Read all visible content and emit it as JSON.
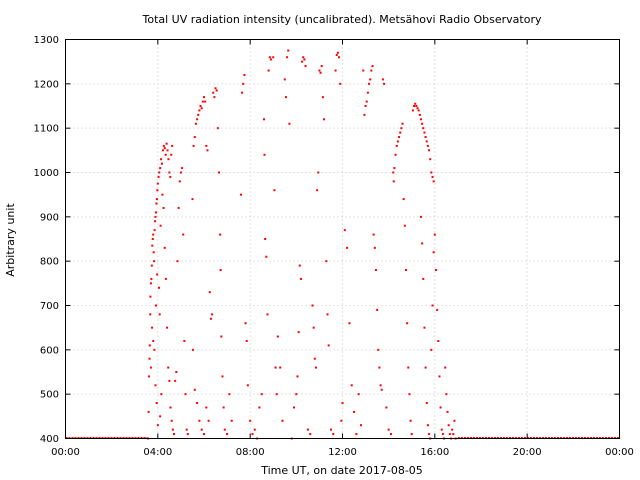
{
  "chart_data": {
    "type": "scatter",
    "title": "Total UV radiation intensity (uncalibrated). Metsähovi Radio Observatory",
    "xlabel": "Time UT, on date 2017-08-05",
    "ylabel": "Arbitrary unit",
    "x_unit": "hours UT",
    "xlim": [
      0,
      24
    ],
    "ylim": [
      400,
      1300
    ],
    "x_ticks": [
      0,
      4,
      8,
      12,
      16,
      20,
      24
    ],
    "x_tick_labels": [
      "00:00",
      "04:00",
      "08:00",
      "12:00",
      "16:00",
      "20:00",
      "00:00"
    ],
    "y_ticks": [
      400,
      500,
      600,
      700,
      800,
      900,
      1000,
      1100,
      1200,
      1300
    ],
    "y_tick_labels": [
      "400",
      "500",
      "600",
      "700",
      "800",
      "900",
      "1000",
      "1100",
      "1200",
      "1300"
    ],
    "grid": true,
    "legend": "none",
    "series": [
      {
        "color": "#ff0000",
        "baseline": {
          "y": 400,
          "x_ranges": [
            [
              0,
              3.55
            ],
            [
              17.0,
              24
            ]
          ]
        },
        "points": [
          [
            3.58,
            400
          ],
          [
            3.6,
            460
          ],
          [
            3.62,
            540
          ],
          [
            3.64,
            580
          ],
          [
            3.65,
            610
          ],
          [
            3.67,
            680
          ],
          [
            3.68,
            720
          ],
          [
            3.7,
            750
          ],
          [
            3.72,
            760
          ],
          [
            3.74,
            790
          ],
          [
            3.76,
            835
          ],
          [
            3.78,
            850
          ],
          [
            3.8,
            860
          ],
          [
            3.82,
            820
          ],
          [
            3.84,
            800
          ],
          [
            3.86,
            870
          ],
          [
            3.88,
            890
          ],
          [
            3.9,
            900
          ],
          [
            3.92,
            910
          ],
          [
            3.94,
            930
          ],
          [
            3.96,
            940
          ],
          [
            3.98,
            960
          ],
          [
            4.0,
            975
          ],
          [
            4.03,
            990
          ],
          [
            4.06,
            1000
          ],
          [
            4.1,
            1010
          ],
          [
            4.14,
            1030
          ],
          [
            4.18,
            1020
          ],
          [
            4.22,
            1050
          ],
          [
            4.26,
            1060
          ],
          [
            4.3,
            1055
          ],
          [
            4.34,
            1040
          ],
          [
            4.38,
            1065
          ],
          [
            4.42,
            1050
          ],
          [
            4.46,
            1030
          ],
          [
            4.5,
            1000
          ],
          [
            4.54,
            990
          ],
          [
            4.58,
            1040
          ],
          [
            4.62,
            1060
          ],
          [
            3.75,
            650
          ],
          [
            3.8,
            620
          ],
          [
            3.85,
            600
          ],
          [
            3.7,
            560
          ],
          [
            3.9,
            520
          ],
          [
            4.0,
            430
          ],
          [
            3.95,
            480
          ],
          [
            4.1,
            450
          ],
          [
            4.15,
            500
          ],
          [
            4.05,
            740
          ],
          [
            4.08,
            680
          ],
          [
            3.92,
            700
          ],
          [
            3.97,
            770
          ],
          [
            4.12,
            880
          ],
          [
            4.2,
            950
          ],
          [
            4.25,
            920
          ],
          [
            4.3,
            830
          ],
          [
            4.35,
            760
          ],
          [
            4.4,
            650
          ],
          [
            4.45,
            560
          ],
          [
            4.5,
            530
          ],
          [
            4.55,
            470
          ],
          [
            4.6,
            440
          ],
          [
            4.65,
            420
          ],
          [
            4.7,
            410
          ],
          [
            4.75,
            530
          ],
          [
            4.8,
            550
          ],
          [
            4.85,
            800
          ],
          [
            4.9,
            920
          ],
          [
            4.95,
            980
          ],
          [
            5.0,
            1000
          ],
          [
            5.05,
            1010
          ],
          [
            5.1,
            860
          ],
          [
            5.15,
            620
          ],
          [
            5.2,
            500
          ],
          [
            5.25,
            420
          ],
          [
            5.3,
            410
          ],
          [
            5.5,
            940
          ],
          [
            5.55,
            1060
          ],
          [
            5.6,
            1080
          ],
          [
            5.65,
            1110
          ],
          [
            5.7,
            1120
          ],
          [
            5.75,
            1130
          ],
          [
            5.8,
            1140
          ],
          [
            5.85,
            1150
          ],
          [
            5.9,
            1145
          ],
          [
            5.95,
            1160
          ],
          [
            6.0,
            1170
          ],
          [
            6.05,
            1160
          ],
          [
            6.1,
            1060
          ],
          [
            6.15,
            1050
          ],
          [
            5.52,
            600
          ],
          [
            5.6,
            510
          ],
          [
            5.7,
            480
          ],
          [
            5.8,
            440
          ],
          [
            5.9,
            420
          ],
          [
            6.0,
            410
          ],
          [
            6.1,
            470
          ],
          [
            6.2,
            440
          ],
          [
            6.25,
            730
          ],
          [
            6.3,
            670
          ],
          [
            6.35,
            680
          ],
          [
            6.4,
            1180
          ],
          [
            6.45,
            1170
          ],
          [
            6.5,
            1190
          ],
          [
            6.55,
            1185
          ],
          [
            6.6,
            1100
          ],
          [
            6.65,
            1000
          ],
          [
            6.7,
            860
          ],
          [
            6.72,
            780
          ],
          [
            6.75,
            630
          ],
          [
            6.8,
            540
          ],
          [
            6.85,
            470
          ],
          [
            6.9,
            420
          ],
          [
            7.0,
            410
          ],
          [
            7.1,
            500
          ],
          [
            7.2,
            440
          ],
          [
            7.6,
            950
          ],
          [
            7.65,
            1180
          ],
          [
            7.7,
            1200
          ],
          [
            7.75,
            1220
          ],
          [
            7.8,
            660
          ],
          [
            7.85,
            620
          ],
          [
            7.9,
            520
          ],
          [
            8.0,
            440
          ],
          [
            8.1,
            410
          ],
          [
            8.2,
            420
          ],
          [
            8.3,
            400
          ],
          [
            8.4,
            470
          ],
          [
            8.5,
            500
          ],
          [
            8.6,
            1120
          ],
          [
            8.62,
            1040
          ],
          [
            8.65,
            850
          ],
          [
            8.7,
            810
          ],
          [
            8.75,
            680
          ],
          [
            8.8,
            1230
          ],
          [
            8.85,
            1260
          ],
          [
            8.9,
            1255
          ],
          [
            9.0,
            1260
          ],
          [
            9.05,
            960
          ],
          [
            9.1,
            560
          ],
          [
            9.15,
            500
          ],
          [
            9.2,
            630
          ],
          [
            9.3,
            560
          ],
          [
            9.4,
            440
          ],
          [
            9.5,
            1210
          ],
          [
            9.55,
            1170
          ],
          [
            9.6,
            1260
          ],
          [
            9.65,
            1275
          ],
          [
            9.7,
            1110
          ],
          [
            9.8,
            400
          ],
          [
            9.9,
            470
          ],
          [
            10.0,
            500
          ],
          [
            10.05,
            540
          ],
          [
            10.1,
            640
          ],
          [
            10.15,
            790
          ],
          [
            10.2,
            760
          ],
          [
            10.25,
            1250
          ],
          [
            10.3,
            1260
          ],
          [
            10.35,
            1255
          ],
          [
            10.4,
            1240
          ],
          [
            10.5,
            420
          ],
          [
            10.6,
            410
          ],
          [
            10.7,
            700
          ],
          [
            10.75,
            650
          ],
          [
            10.8,
            580
          ],
          [
            10.85,
            560
          ],
          [
            10.9,
            960
          ],
          [
            10.95,
            1000
          ],
          [
            11.0,
            1230
          ],
          [
            11.05,
            1225
          ],
          [
            11.1,
            1240
          ],
          [
            11.15,
            1170
          ],
          [
            11.2,
            1120
          ],
          [
            11.3,
            800
          ],
          [
            11.35,
            680
          ],
          [
            11.4,
            610
          ],
          [
            11.5,
            420
          ],
          [
            11.6,
            410
          ],
          [
            11.7,
            1230
          ],
          [
            11.75,
            1265
          ],
          [
            11.8,
            1270
          ],
          [
            11.85,
            1260
          ],
          [
            11.9,
            1200
          ],
          [
            11.95,
            440
          ],
          [
            12.0,
            480
          ],
          [
            12.1,
            870
          ],
          [
            12.2,
            830
          ],
          [
            12.3,
            660
          ],
          [
            12.4,
            520
          ],
          [
            12.5,
            460
          ],
          [
            12.6,
            410
          ],
          [
            12.7,
            500
          ],
          [
            12.8,
            430
          ],
          [
            12.9,
            1230
          ],
          [
            12.95,
            1130
          ],
          [
            13.0,
            1150
          ],
          [
            13.05,
            1160
          ],
          [
            13.1,
            1180
          ],
          [
            13.15,
            1200
          ],
          [
            13.2,
            1210
          ],
          [
            13.25,
            1230
          ],
          [
            13.3,
            1240
          ],
          [
            13.35,
            860
          ],
          [
            13.4,
            830
          ],
          [
            13.45,
            780
          ],
          [
            13.5,
            690
          ],
          [
            13.55,
            600
          ],
          [
            13.6,
            560
          ],
          [
            13.65,
            520
          ],
          [
            13.7,
            510
          ],
          [
            13.75,
            1210
          ],
          [
            13.8,
            1200
          ],
          [
            13.9,
            470
          ],
          [
            14.0,
            420
          ],
          [
            14.1,
            410
          ],
          [
            14.2,
            1000
          ],
          [
            14.22,
            980
          ],
          [
            14.25,
            1010
          ],
          [
            14.3,
            1040
          ],
          [
            14.35,
            1060
          ],
          [
            14.4,
            1070
          ],
          [
            14.45,
            1080
          ],
          [
            14.5,
            1090
          ],
          [
            14.55,
            1100
          ],
          [
            14.6,
            1110
          ],
          [
            14.65,
            940
          ],
          [
            14.7,
            880
          ],
          [
            14.75,
            780
          ],
          [
            14.8,
            660
          ],
          [
            14.85,
            560
          ],
          [
            14.9,
            500
          ],
          [
            14.95,
            440
          ],
          [
            15.0,
            410
          ],
          [
            15.05,
            1140
          ],
          [
            15.1,
            1150
          ],
          [
            15.15,
            1155
          ],
          [
            15.2,
            1150
          ],
          [
            15.25,
            1145
          ],
          [
            15.3,
            1140
          ],
          [
            15.35,
            1130
          ],
          [
            15.4,
            1120
          ],
          [
            15.45,
            1110
          ],
          [
            15.5,
            1100
          ],
          [
            15.55,
            1090
          ],
          [
            15.6,
            1080
          ],
          [
            15.65,
            1070
          ],
          [
            15.7,
            1060
          ],
          [
            15.75,
            1050
          ],
          [
            15.8,
            1030
          ],
          [
            15.85,
            1000
          ],
          [
            15.9,
            990
          ],
          [
            15.95,
            980
          ],
          [
            15.4,
            900
          ],
          [
            15.45,
            840
          ],
          [
            15.5,
            760
          ],
          [
            15.55,
            650
          ],
          [
            15.6,
            560
          ],
          [
            15.65,
            480
          ],
          [
            15.7,
            430
          ],
          [
            15.75,
            410
          ],
          [
            15.8,
            400
          ],
          [
            15.85,
            600
          ],
          [
            15.9,
            700
          ],
          [
            15.95,
            820
          ],
          [
            16.0,
            860
          ],
          [
            16.05,
            780
          ],
          [
            16.1,
            690
          ],
          [
            16.15,
            620
          ],
          [
            16.2,
            540
          ],
          [
            16.25,
            470
          ],
          [
            16.3,
            420
          ],
          [
            16.35,
            410
          ],
          [
            16.4,
            400
          ],
          [
            16.45,
            560
          ],
          [
            16.5,
            500
          ],
          [
            16.55,
            460
          ],
          [
            16.6,
            430
          ],
          [
            16.65,
            410
          ],
          [
            16.7,
            400
          ],
          [
            16.75,
            420
          ],
          [
            16.8,
            410
          ],
          [
            16.85,
            440
          ],
          [
            16.9,
            400
          ]
        ]
      }
    ]
  }
}
